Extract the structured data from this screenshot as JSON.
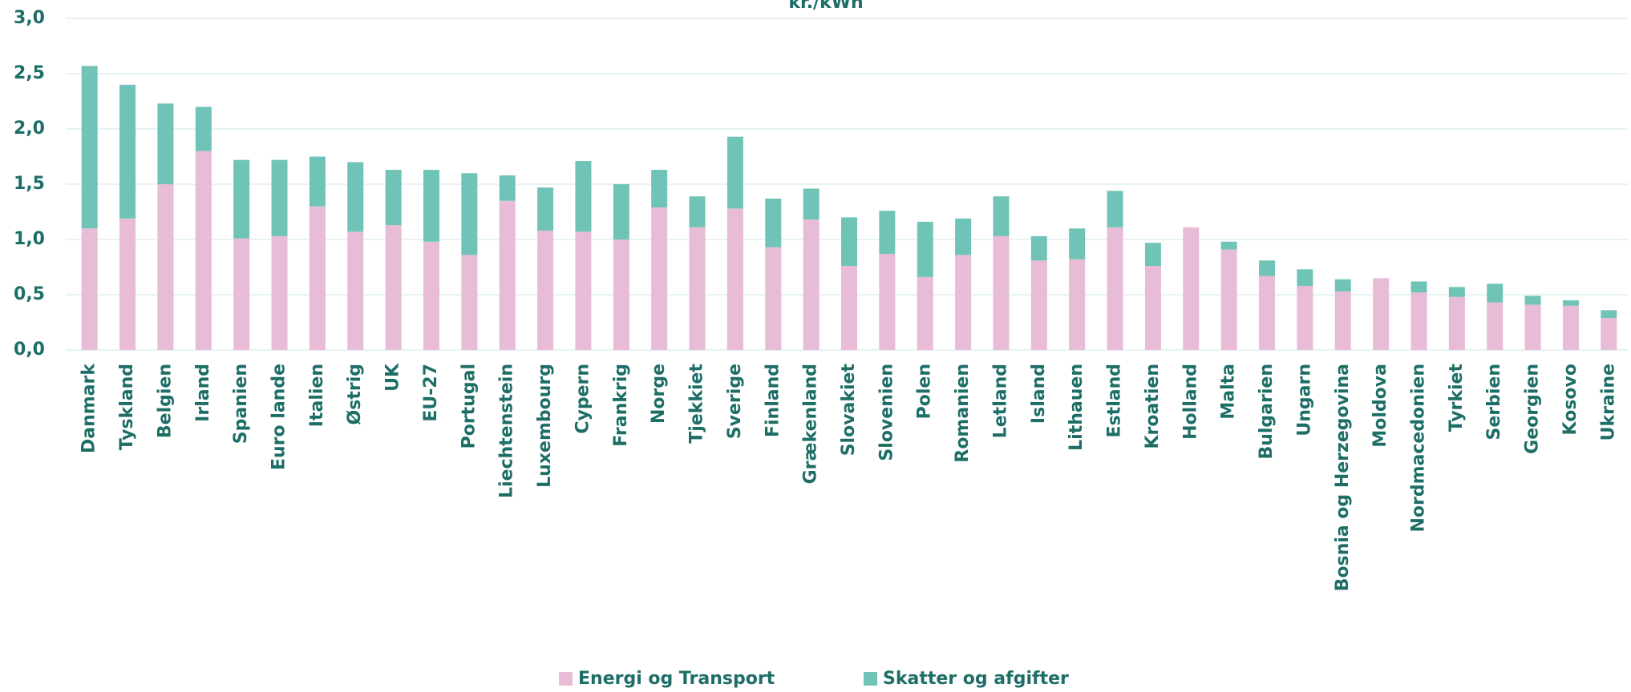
{
  "chart_data": {
    "type": "bar",
    "stacked": true,
    "title": "kr./kWh",
    "categories": [
      "Danmark",
      "Tyskland",
      "Belgien",
      "Irland",
      "Spanien",
      "Euro lande",
      "Italien",
      "Østrig",
      "UK",
      "EU-27",
      "Portugal",
      "Liechtenstein",
      "Luxembourg",
      "Cypern",
      "Frankrig",
      "Norge",
      "Tjekkiet",
      "Sverige",
      "Finland",
      "Grækenland",
      "Slovakiet",
      "Slovenien",
      "Polen",
      "Romanien",
      "Letland",
      "Island",
      "Lithauen",
      "Estland",
      "Kroatien",
      "Holland",
      "Malta",
      "Bulgarien",
      "Ungarn",
      "Bosnia og Herzegovina",
      "Moldova",
      "Nordmacedonien",
      "Tyrkiet",
      "Serbien",
      "Georgien",
      "Kosovo",
      "Ukraine"
    ],
    "series": [
      {
        "name": "Energi og Transport",
        "color": "#e8bbd7",
        "values": [
          1.1,
          1.19,
          1.5,
          1.8,
          1.01,
          1.03,
          1.3,
          1.07,
          1.13,
          0.98,
          0.86,
          1.35,
          1.08,
          1.07,
          1.0,
          1.29,
          1.11,
          1.28,
          0.93,
          1.18,
          0.76,
          0.87,
          0.66,
          0.86,
          1.03,
          0.81,
          0.82,
          1.11,
          0.76,
          1.11,
          0.91,
          0.67,
          0.58,
          0.53,
          0.65,
          0.52,
          0.48,
          0.43,
          0.41,
          0.4,
          0.29
        ]
      },
      {
        "name": "Skatter og afgifter",
        "color": "#70c4b7",
        "values": [
          1.47,
          1.21,
          0.73,
          0.4,
          0.71,
          0.69,
          0.45,
          0.63,
          0.5,
          0.65,
          0.74,
          0.23,
          0.39,
          0.64,
          0.5,
          0.34,
          0.28,
          0.65,
          0.44,
          0.28,
          0.44,
          0.39,
          0.5,
          0.33,
          0.36,
          0.22,
          0.28,
          0.33,
          0.21,
          0,
          0.07,
          0.14,
          0.15,
          0.11,
          0,
          0.1,
          0.09,
          0.17,
          0.08,
          0.05,
          0.07
        ]
      }
    ],
    "ylim": [
      0,
      3
    ],
    "yticks": [
      {
        "value": 0,
        "label": "0,0"
      },
      {
        "value": 0.5,
        "label": "0,5"
      },
      {
        "value": 1,
        "label": "1,0"
      },
      {
        "value": 1.5,
        "label": "1,5"
      },
      {
        "value": 2,
        "label": "2,0"
      },
      {
        "value": 2.5,
        "label": "2,5"
      },
      {
        "value": 3,
        "label": "3,0"
      }
    ],
    "grid": true,
    "legend": "bottom"
  }
}
